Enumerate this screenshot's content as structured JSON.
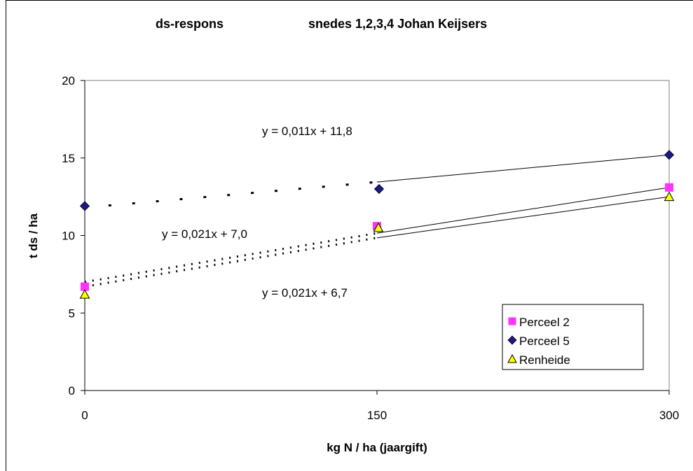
{
  "chart_data": {
    "type": "scatter",
    "title_left": "ds-respons",
    "title_right": "snedes 1,2,3,4 Johan Keijsers",
    "xlabel": "kg N / ha (jaargift)",
    "ylabel": "t ds / ha",
    "xlim": [
      0,
      300
    ],
    "ylim": [
      0,
      20
    ],
    "xticks": [
      "0",
      "150",
      "300"
    ],
    "yticks": [
      "0",
      "5",
      "10",
      "15",
      "20"
    ],
    "grid": false,
    "legend_position": "bottom-right",
    "series": [
      {
        "name": "Perceel 2",
        "marker": "square",
        "color": "#ff33ff",
        "points": [
          [
            0,
            6.7
          ],
          [
            150,
            10.6
          ],
          [
            300,
            13.1
          ]
        ],
        "trendline": {
          "slope": 0.021,
          "intercept": 7.0,
          "label": "y = 0,021x + 7,0"
        }
      },
      {
        "name": "Perceel 5",
        "marker": "diamond",
        "color": "#1a1a8c",
        "points": [
          [
            0,
            11.9
          ],
          [
            150,
            13.0
          ],
          [
            300,
            15.2
          ]
        ],
        "trendline": {
          "slope": 0.011,
          "intercept": 11.8,
          "label": "y = 0,011x + 11,8"
        }
      },
      {
        "name": "Renheide",
        "marker": "triangle",
        "color": "#ffff00",
        "points": [
          [
            0,
            6.2
          ],
          [
            150,
            10.5
          ],
          [
            300,
            12.5
          ]
        ],
        "trendline": {
          "slope": 0.021,
          "intercept": 6.7,
          "label": "y = 0,021x + 6,7"
        }
      }
    ]
  }
}
